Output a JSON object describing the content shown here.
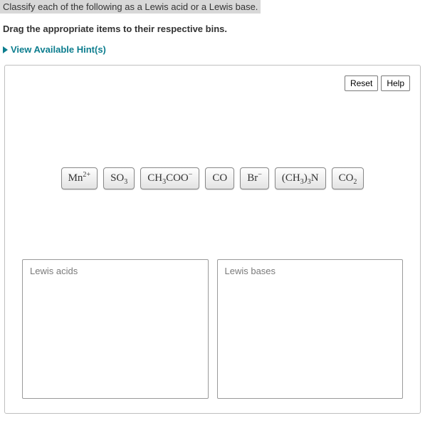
{
  "prompt": "Classify each of the following as a Lewis acid or a Lewis base.",
  "instruction": "Drag the appropriate items to their respective bins.",
  "hints_label": "View Available Hint(s)",
  "buttons": {
    "reset": "Reset",
    "help": "Help"
  },
  "items": [
    {
      "html": "Mn<sup>2+</sup>"
    },
    {
      "html": "SO<sub>3</sub>"
    },
    {
      "html": "CH<sub>3</sub>COO<sup>&minus;</sup>"
    },
    {
      "html": "CO"
    },
    {
      "html": "Br<sup>&minus;</sup>"
    },
    {
      "html": "(CH<sub>3</sub>)<sub>3</sub>N"
    },
    {
      "html": "CO<sub>2</sub>"
    }
  ],
  "bins": {
    "acids": "Lewis acids",
    "bases": "Lewis bases"
  }
}
